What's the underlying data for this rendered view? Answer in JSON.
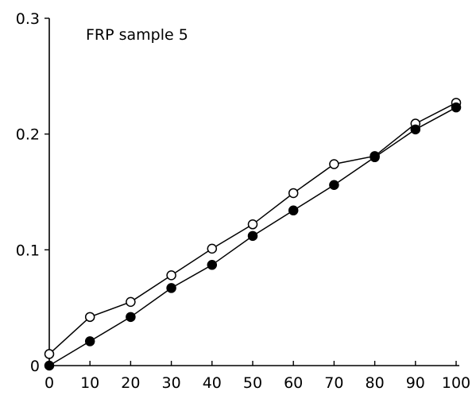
{
  "chart_data": {
    "type": "line",
    "title": "FRP sample 5",
    "xlabel": "",
    "ylabel": "",
    "xlim": [
      0,
      100
    ],
    "ylim": [
      0,
      0.3
    ],
    "xticks": [
      "0",
      "10",
      "20",
      "30",
      "40",
      "50",
      "60",
      "70",
      "80",
      "90",
      "100"
    ],
    "yticks": [
      "0",
      "0.1",
      "0.2",
      "0.3"
    ],
    "grid": false,
    "legend": "none",
    "series": [
      {
        "marker": "open-circle",
        "x": [
          0,
          10,
          20,
          30,
          40,
          50,
          60,
          70,
          80,
          90,
          100
        ],
        "y": [
          0.01,
          0.042,
          0.055,
          0.078,
          0.101,
          0.122,
          0.149,
          0.174,
          0.181,
          0.209,
          0.227
        ]
      },
      {
        "marker": "filled-circle",
        "x": [
          0,
          10,
          20,
          30,
          40,
          50,
          60,
          70,
          80,
          90,
          100
        ],
        "y": [
          0.0,
          0.021,
          0.042,
          0.067,
          0.087,
          0.112,
          0.134,
          0.156,
          0.18,
          0.204,
          0.223
        ]
      }
    ]
  }
}
